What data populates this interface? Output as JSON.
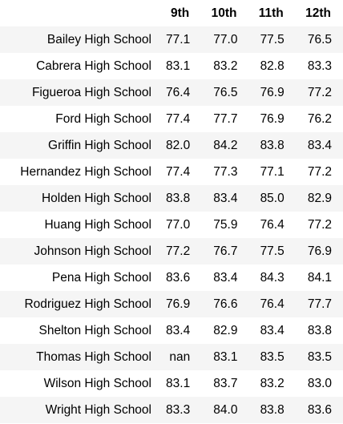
{
  "table": {
    "columns": [
      "9th",
      "10th",
      "11th",
      "12th"
    ],
    "rows": [
      {
        "school": "Bailey High School",
        "values": [
          "77.1",
          "77.0",
          "77.5",
          "76.5"
        ]
      },
      {
        "school": "Cabrera High School",
        "values": [
          "83.1",
          "83.2",
          "82.8",
          "83.3"
        ]
      },
      {
        "school": "Figueroa High School",
        "values": [
          "76.4",
          "76.5",
          "76.9",
          "77.2"
        ]
      },
      {
        "school": "Ford High School",
        "values": [
          "77.4",
          "77.7",
          "76.9",
          "76.2"
        ]
      },
      {
        "school": "Griffin High School",
        "values": [
          "82.0",
          "84.2",
          "83.8",
          "83.4"
        ]
      },
      {
        "school": "Hernandez High School",
        "values": [
          "77.4",
          "77.3",
          "77.1",
          "77.2"
        ]
      },
      {
        "school": "Holden High School",
        "values": [
          "83.8",
          "83.4",
          "85.0",
          "82.9"
        ]
      },
      {
        "school": "Huang High School",
        "values": [
          "77.0",
          "75.9",
          "76.4",
          "77.2"
        ]
      },
      {
        "school": "Johnson High School",
        "values": [
          "77.2",
          "76.7",
          "77.5",
          "76.9"
        ]
      },
      {
        "school": "Pena High School",
        "values": [
          "83.6",
          "83.4",
          "84.3",
          "84.1"
        ]
      },
      {
        "school": "Rodriguez High School",
        "values": [
          "76.9",
          "76.6",
          "76.4",
          "77.7"
        ]
      },
      {
        "school": "Shelton High School",
        "values": [
          "83.4",
          "82.9",
          "83.4",
          "83.8"
        ]
      },
      {
        "school": "Thomas High School",
        "values": [
          "nan",
          "83.1",
          "83.5",
          "83.5"
        ]
      },
      {
        "school": "Wilson High School",
        "values": [
          "83.1",
          "83.7",
          "83.2",
          "83.0"
        ]
      },
      {
        "school": "Wright High School",
        "values": [
          "83.3",
          "84.0",
          "83.8",
          "83.6"
        ]
      }
    ]
  }
}
